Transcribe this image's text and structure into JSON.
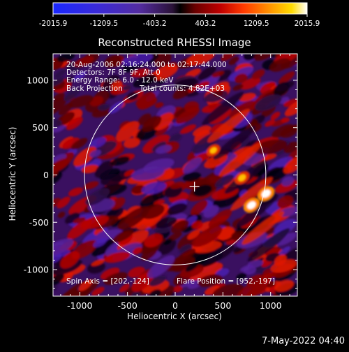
{
  "colorbar": {
    "labels": [
      "-2015.9",
      "-1209.5",
      "-403.2",
      "403.2",
      "1209.5",
      "2015.9"
    ],
    "min": -2015.9,
    "max": 2015.9,
    "colors_neg": [
      "#1f2cff",
      "#3a2bd6",
      "#4f2ca8",
      "#5a2d7f",
      "#3c1a4a",
      "#000000"
    ],
    "colors_pos": [
      "#000000",
      "#5a0000",
      "#a80000",
      "#ff2a00",
      "#ff8a00",
      "#ffd200",
      "#ffffff"
    ]
  },
  "title": "Reconstructed RHESSI Image",
  "info": {
    "time": "20-Aug-2006 02:16:24.000 to 02:17:44.000",
    "detectors": "Detectors: 7F 8F 9F, Att 0",
    "energy": "Energy Range: 6.0 - 12.0 keV",
    "method": "Back Projection",
    "counts": "Total counts: 4.82E+03",
    "spin_axis": "Spin Axis = [202,-124]",
    "flare_position": "Flare Position = [952,-197]"
  },
  "footer": "7-May-2022 04:40",
  "chart_data": {
    "type": "heatmap",
    "title": "Reconstructed RHESSI Image",
    "xlabel": "Heliocentric X (arcsec)",
    "ylabel": "Heliocentric Y (arcsec)",
    "xlim": [
      -1280,
      1280
    ],
    "ylim": [
      -1280,
      1280
    ],
    "x_ticks": [
      -1000,
      -500,
      0,
      500,
      1000
    ],
    "y_ticks": [
      -1000,
      -500,
      0,
      500,
      1000
    ],
    "x_tick_labels": [
      "-1000",
      "-500",
      "0",
      "500",
      "1000"
    ],
    "y_tick_labels": [
      "-1000",
      "-500",
      "0",
      "500",
      "1000"
    ],
    "solar_limb_radius": 950,
    "crosshair": [
      202,
      -124
    ],
    "peaks": [
      {
        "x": 952,
        "y": -197,
        "value": 2015.9
      },
      {
        "x": 800,
        "y": -320,
        "value": 1800
      },
      {
        "x": 700,
        "y": -30,
        "value": 1300
      },
      {
        "x": 400,
        "y": 260,
        "value": 900
      }
    ]
  }
}
